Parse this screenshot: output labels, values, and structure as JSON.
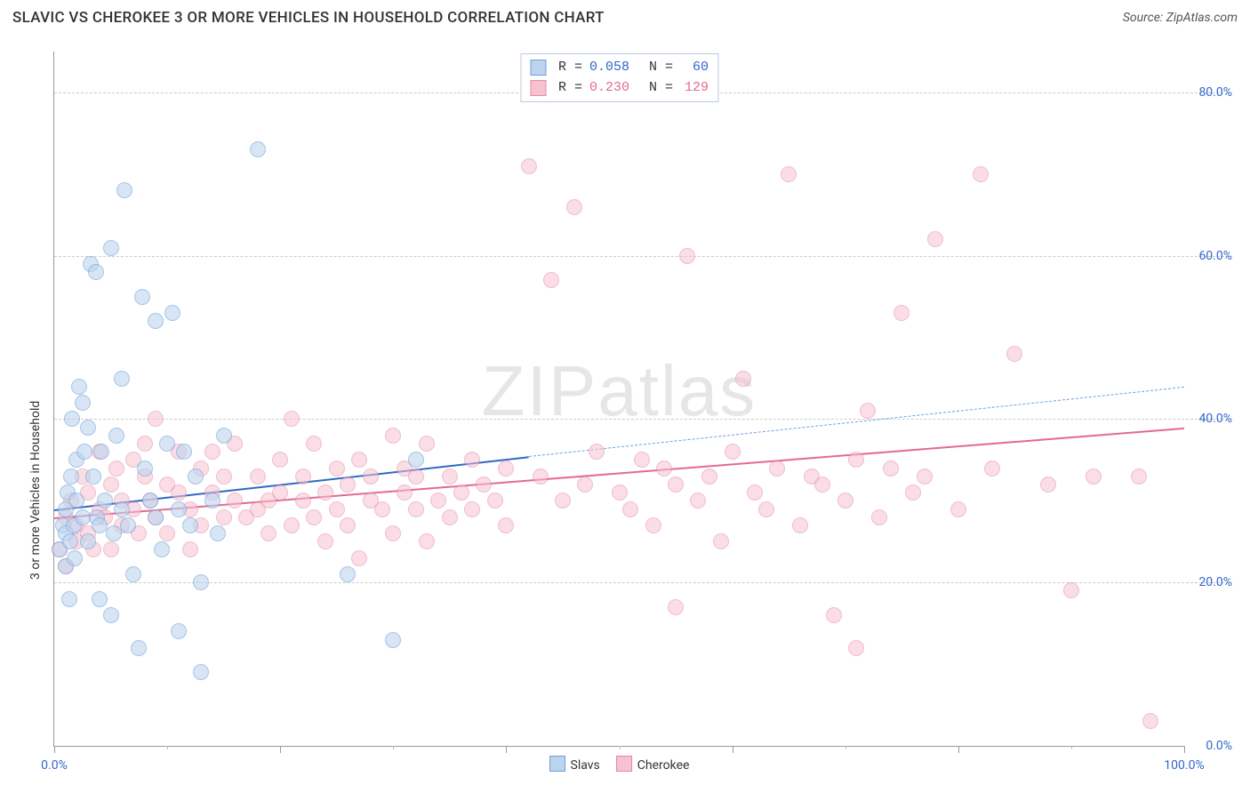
{
  "title": "SLAVIC VS CHEROKEE 3 OR MORE VEHICLES IN HOUSEHOLD CORRELATION CHART",
  "source_prefix": "Source: ",
  "source_name": "ZipAtlas.com",
  "y_axis_label": "3 or more Vehicles in Household",
  "watermark_bold": "ZIP",
  "watermark_rest": "atlas",
  "chart": {
    "type": "scatter",
    "xlim": [
      0,
      100
    ],
    "ylim": [
      0,
      85
    ],
    "y_ticks": [
      0,
      20,
      40,
      60,
      80
    ],
    "y_tick_labels": [
      "0.0%",
      "20.0%",
      "40.0%",
      "60.0%",
      "80.0%"
    ],
    "x_majors": [
      0,
      20,
      40,
      60,
      80,
      100
    ],
    "x_minors": [
      10,
      30,
      50,
      70,
      90
    ],
    "x_tick_labels": {
      "0": "0.0%",
      "100": "100.0%"
    },
    "grid_color": "#cccccc",
    "axis_color": "#999999",
    "background_color": "#ffffff",
    "marker_radius": 9,
    "series": [
      {
        "name": "Slavs",
        "label": "Slavs",
        "fill": "#bdd4ee",
        "stroke": "#6f9fd8",
        "fill_opacity": 0.6,
        "R": "0.058",
        "N": "60",
        "stat_color": "#3366cc",
        "trend": {
          "x1": 0,
          "y1": 29,
          "x2": 42,
          "y2": 35.5,
          "solid_color": "#2f69c4",
          "width": 2.5,
          "dash_x2": 100,
          "dash_y2": 44,
          "dash_color": "#6fa0e0"
        },
        "points": [
          [
            0.5,
            24
          ],
          [
            0.8,
            27
          ],
          [
            1.0,
            22
          ],
          [
            1.0,
            26
          ],
          [
            1.0,
            29
          ],
          [
            1.2,
            31
          ],
          [
            1.3,
            18
          ],
          [
            1.4,
            25
          ],
          [
            1.5,
            33
          ],
          [
            1.6,
            40
          ],
          [
            1.7,
            27
          ],
          [
            1.8,
            23
          ],
          [
            2.0,
            35
          ],
          [
            2.0,
            30
          ],
          [
            2.2,
            44
          ],
          [
            2.5,
            28
          ],
          [
            2.5,
            42
          ],
          [
            2.7,
            36
          ],
          [
            3.0,
            25
          ],
          [
            3.0,
            39
          ],
          [
            3.2,
            59
          ],
          [
            3.5,
            33
          ],
          [
            3.7,
            58
          ],
          [
            3.8,
            28
          ],
          [
            4.0,
            18
          ],
          [
            4.0,
            27
          ],
          [
            4.2,
            36
          ],
          [
            4.5,
            30
          ],
          [
            5.0,
            16
          ],
          [
            5.0,
            61
          ],
          [
            5.3,
            26
          ],
          [
            5.5,
            38
          ],
          [
            6.0,
            45
          ],
          [
            6.0,
            29
          ],
          [
            6.2,
            68
          ],
          [
            6.5,
            27
          ],
          [
            7.0,
            21
          ],
          [
            7.5,
            12
          ],
          [
            7.8,
            55
          ],
          [
            8.0,
            34
          ],
          [
            8.5,
            30
          ],
          [
            9.0,
            52
          ],
          [
            9.0,
            28
          ],
          [
            9.5,
            24
          ],
          [
            10.0,
            37
          ],
          [
            10.5,
            53
          ],
          [
            11.0,
            29
          ],
          [
            11.0,
            14
          ],
          [
            11.5,
            36
          ],
          [
            12.0,
            27
          ],
          [
            12.5,
            33
          ],
          [
            13.0,
            20
          ],
          [
            13.0,
            9
          ],
          [
            14.0,
            30
          ],
          [
            14.5,
            26
          ],
          [
            15.0,
            38
          ],
          [
            18.0,
            73
          ],
          [
            26.0,
            21
          ],
          [
            30.0,
            13
          ],
          [
            32.0,
            35
          ]
        ]
      },
      {
        "name": "Cherokee",
        "label": "Cherokee",
        "fill": "#f6c2d1",
        "stroke": "#e48aa6",
        "fill_opacity": 0.55,
        "R": "0.230",
        "N": "129",
        "stat_color": "#e26b8f",
        "trend": {
          "x1": 0,
          "y1": 28,
          "x2": 100,
          "y2": 39,
          "solid_color": "#e26b8f",
          "width": 2.5
        },
        "points": [
          [
            0.5,
            24
          ],
          [
            1,
            28
          ],
          [
            1,
            22
          ],
          [
            1.5,
            30
          ],
          [
            2,
            27
          ],
          [
            2,
            25
          ],
          [
            2.5,
            33
          ],
          [
            3,
            31
          ],
          [
            3,
            26
          ],
          [
            3.5,
            24
          ],
          [
            4,
            29
          ],
          [
            4,
            36
          ],
          [
            4.5,
            28
          ],
          [
            5,
            32
          ],
          [
            5,
            24
          ],
          [
            5.5,
            34
          ],
          [
            6,
            30
          ],
          [
            6,
            27
          ],
          [
            7,
            35
          ],
          [
            7,
            29
          ],
          [
            7.5,
            26
          ],
          [
            8,
            33
          ],
          [
            8,
            37
          ],
          [
            8.5,
            30
          ],
          [
            9,
            28
          ],
          [
            9,
            40
          ],
          [
            10,
            32
          ],
          [
            10,
            26
          ],
          [
            11,
            36
          ],
          [
            11,
            31
          ],
          [
            12,
            29
          ],
          [
            12,
            24
          ],
          [
            13,
            34
          ],
          [
            13,
            27
          ],
          [
            14,
            36
          ],
          [
            14,
            31
          ],
          [
            15,
            33
          ],
          [
            15,
            28
          ],
          [
            16,
            30
          ],
          [
            16,
            37
          ],
          [
            17,
            28
          ],
          [
            18,
            33
          ],
          [
            18,
            29
          ],
          [
            19,
            30
          ],
          [
            19,
            26
          ],
          [
            20,
            35
          ],
          [
            20,
            31
          ],
          [
            21,
            27
          ],
          [
            21,
            40
          ],
          [
            22,
            33
          ],
          [
            22,
            30
          ],
          [
            23,
            28
          ],
          [
            23,
            37
          ],
          [
            24,
            31
          ],
          [
            24,
            25
          ],
          [
            25,
            34
          ],
          [
            25,
            29
          ],
          [
            26,
            32
          ],
          [
            26,
            27
          ],
          [
            27,
            35
          ],
          [
            27,
            23
          ],
          [
            28,
            30
          ],
          [
            28,
            33
          ],
          [
            29,
            29
          ],
          [
            30,
            38
          ],
          [
            30,
            26
          ],
          [
            31,
            31
          ],
          [
            31,
            34
          ],
          [
            32,
            33
          ],
          [
            32,
            29
          ],
          [
            33,
            37
          ],
          [
            33,
            25
          ],
          [
            34,
            30
          ],
          [
            35,
            33
          ],
          [
            35,
            28
          ],
          [
            36,
            31
          ],
          [
            37,
            35
          ],
          [
            37,
            29
          ],
          [
            38,
            32
          ],
          [
            39,
            30
          ],
          [
            40,
            34
          ],
          [
            40,
            27
          ],
          [
            42,
            71
          ],
          [
            43,
            33
          ],
          [
            44,
            57
          ],
          [
            45,
            30
          ],
          [
            46,
            66
          ],
          [
            47,
            32
          ],
          [
            48,
            36
          ],
          [
            50,
            31
          ],
          [
            51,
            29
          ],
          [
            52,
            35
          ],
          [
            53,
            27
          ],
          [
            54,
            34
          ],
          [
            55,
            17
          ],
          [
            55,
            32
          ],
          [
            56,
            60
          ],
          [
            57,
            30
          ],
          [
            58,
            33
          ],
          [
            59,
            25
          ],
          [
            60,
            36
          ],
          [
            61,
            45
          ],
          [
            62,
            31
          ],
          [
            63,
            29
          ],
          [
            64,
            34
          ],
          [
            65,
            70
          ],
          [
            66,
            27
          ],
          [
            67,
            33
          ],
          [
            68,
            32
          ],
          [
            69,
            16
          ],
          [
            70,
            30
          ],
          [
            71,
            35
          ],
          [
            71,
            12
          ],
          [
            72,
            41
          ],
          [
            73,
            28
          ],
          [
            74,
            34
          ],
          [
            75,
            53
          ],
          [
            76,
            31
          ],
          [
            77,
            33
          ],
          [
            78,
            62
          ],
          [
            80,
            29
          ],
          [
            82,
            70
          ],
          [
            83,
            34
          ],
          [
            85,
            48
          ],
          [
            88,
            32
          ],
          [
            90,
            19
          ],
          [
            92,
            33
          ],
          [
            97,
            3
          ],
          [
            96,
            33
          ]
        ]
      }
    ]
  },
  "legend_top": {
    "R_label": "R =",
    "N_label": "N ="
  },
  "legend_bottom": {
    "items": [
      "Slavs",
      "Cherokee"
    ]
  }
}
